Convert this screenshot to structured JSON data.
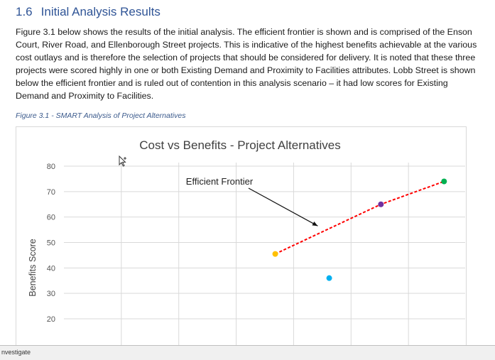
{
  "section": {
    "number": "1.6",
    "title": "Initial Analysis Results"
  },
  "paragraph_lines": [
    "Figure 3.1 below shows the results of the initial analysis. The efficient frontier is shown and is comprised of the Enson",
    "Court, River Road, and Ellenborough Street projects. This is indicative of the highest benefits achievable at the various",
    "cost outlays and is therefore the selection of projects that should be considered for delivery. It is noted that these three",
    "projects were scored highly in one or both Existing Demand and Proximity to Facilities attributes. Lobb Street is shown",
    "below the efficient frontier and is ruled out of contention in this analysis scenario – it had low scores for Existing",
    "Demand and Proximity to Facilities."
  ],
  "figure_caption": "Figure 3.1 - SMART Analysis of Project Alternatives",
  "status_bar": {
    "label": "nvestigate"
  },
  "chart_data": {
    "type": "scatter",
    "title": "Cost vs Benefits - Project Alternatives",
    "ylabel": "Benefits Score",
    "xlabel": "",
    "ylim": [
      10,
      80
    ],
    "yticks": [
      80,
      70,
      60,
      50,
      40,
      30,
      20
    ],
    "xlim": [
      0,
      7
    ],
    "points": [
      {
        "x": 3.68,
        "y": 45.5,
        "color": "#ffc000"
      },
      {
        "x": 4.62,
        "y": 36.0,
        "color": "#00b0f0"
      },
      {
        "x": 5.52,
        "y": 65.0,
        "color": "#7030a0"
      },
      {
        "x": 6.62,
        "y": 74.0,
        "color": "#00b050"
      }
    ],
    "frontier": {
      "color": "#ff0000",
      "points": [
        [
          3.68,
          45.5
        ],
        [
          5.52,
          65.0
        ],
        [
          6.62,
          74.0
        ]
      ]
    },
    "annotation": {
      "text": "Efficient Frontier",
      "arrow_target": [
        4.42,
        56.5
      ]
    },
    "grid": true
  }
}
